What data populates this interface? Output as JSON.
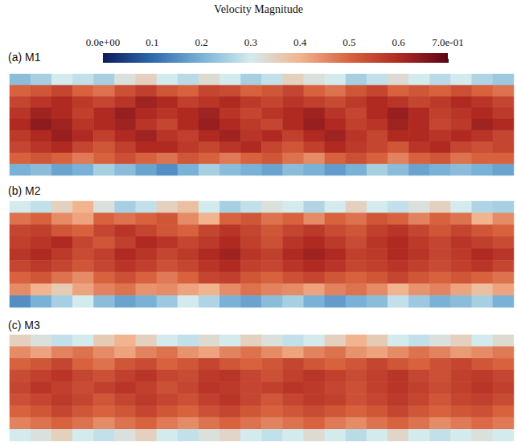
{
  "chart_data": {
    "type": "heatmap",
    "title": "Velocity Magnitude",
    "tick_labels": false,
    "colorbar": {
      "range": [
        0,
        0.7
      ],
      "ticks": [
        {
          "value": 0,
          "label": "0.0e+00"
        },
        0.1,
        0.2,
        0.3,
        0.4,
        0.5,
        0.6,
        {
          "value": 0.7,
          "label": "7.0e-01"
        }
      ]
    },
    "panels": [
      {
        "label": "(a) M1",
        "cells": [
          [
            0.22,
            0.25,
            0.3,
            0.28,
            0.25,
            0.32,
            0.35,
            0.3,
            0.27,
            0.33,
            0.3,
            0.25,
            0.28,
            0.35,
            0.32,
            0.3,
            0.25,
            0.28,
            0.33,
            0.3,
            0.27,
            0.3,
            0.26,
            0.24
          ],
          [
            0.5,
            0.52,
            0.55,
            0.5,
            0.48,
            0.53,
            0.56,
            0.52,
            0.5,
            0.55,
            0.54,
            0.5,
            0.52,
            0.55,
            0.5,
            0.48,
            0.52,
            0.55,
            0.5,
            0.52,
            0.5,
            0.53,
            0.5,
            0.48
          ],
          [
            0.55,
            0.58,
            0.6,
            0.57,
            0.55,
            0.58,
            0.62,
            0.6,
            0.56,
            0.58,
            0.6,
            0.57,
            0.55,
            0.58,
            0.56,
            0.54,
            0.57,
            0.6,
            0.58,
            0.55,
            0.57,
            0.6,
            0.58,
            0.55
          ],
          [
            0.58,
            0.62,
            0.6,
            0.56,
            0.6,
            0.63,
            0.6,
            0.58,
            0.6,
            0.62,
            0.58,
            0.55,
            0.58,
            0.6,
            0.62,
            0.58,
            0.55,
            0.6,
            0.63,
            0.6,
            0.56,
            0.58,
            0.6,
            0.57
          ],
          [
            0.6,
            0.64,
            0.62,
            0.58,
            0.6,
            0.62,
            0.58,
            0.55,
            0.6,
            0.63,
            0.6,
            0.57,
            0.55,
            0.6,
            0.63,
            0.6,
            0.56,
            0.58,
            0.62,
            0.6,
            0.55,
            0.57,
            0.62,
            0.6
          ],
          [
            0.57,
            0.6,
            0.63,
            0.6,
            0.56,
            0.6,
            0.62,
            0.58,
            0.56,
            0.6,
            0.62,
            0.58,
            0.6,
            0.56,
            0.6,
            0.62,
            0.58,
            0.55,
            0.6,
            0.6,
            0.58,
            0.6,
            0.58,
            0.55
          ],
          [
            0.55,
            0.58,
            0.6,
            0.55,
            0.52,
            0.56,
            0.6,
            0.6,
            0.57,
            0.55,
            0.58,
            0.6,
            0.55,
            0.52,
            0.56,
            0.6,
            0.57,
            0.55,
            0.52,
            0.58,
            0.6,
            0.55,
            0.53,
            0.55
          ],
          [
            0.5,
            0.52,
            0.5,
            0.47,
            0.5,
            0.53,
            0.5,
            0.48,
            0.52,
            0.5,
            0.47,
            0.5,
            0.52,
            0.48,
            0.45,
            0.5,
            0.53,
            0.5,
            0.46,
            0.5,
            0.52,
            0.48,
            0.5,
            0.5
          ],
          [
            0.2,
            0.22,
            0.18,
            0.2,
            0.25,
            0.22,
            0.18,
            0.15,
            0.2,
            0.25,
            0.22,
            0.2,
            0.18,
            0.22,
            0.2,
            0.17,
            0.2,
            0.25,
            0.22,
            0.18,
            0.2,
            0.22,
            0.2,
            0.18
          ]
        ]
      },
      {
        "label": "(b) M2",
        "cells": [
          [
            0.3,
            0.28,
            0.35,
            0.4,
            0.32,
            0.25,
            0.28,
            0.35,
            0.38,
            0.3,
            0.25,
            0.28,
            0.32,
            0.3,
            0.26,
            0.3,
            0.35,
            0.3,
            0.28,
            0.32,
            0.35,
            0.3,
            0.26,
            0.25
          ],
          [
            0.48,
            0.5,
            0.45,
            0.42,
            0.5,
            0.48,
            0.5,
            0.52,
            0.45,
            0.4,
            0.5,
            0.52,
            0.48,
            0.5,
            0.45,
            0.5,
            0.48,
            0.52,
            0.5,
            0.46,
            0.5,
            0.48,
            0.4,
            0.45
          ],
          [
            0.55,
            0.56,
            0.52,
            0.5,
            0.55,
            0.58,
            0.55,
            0.52,
            0.5,
            0.55,
            0.58,
            0.55,
            0.52,
            0.55,
            0.57,
            0.54,
            0.52,
            0.56,
            0.58,
            0.55,
            0.52,
            0.55,
            0.52,
            0.5
          ],
          [
            0.56,
            0.58,
            0.6,
            0.55,
            0.52,
            0.56,
            0.6,
            0.58,
            0.55,
            0.57,
            0.6,
            0.56,
            0.53,
            0.58,
            0.6,
            0.57,
            0.54,
            0.58,
            0.6,
            0.57,
            0.55,
            0.58,
            0.56,
            0.54
          ],
          [
            0.58,
            0.6,
            0.57,
            0.54,
            0.56,
            0.6,
            0.58,
            0.55,
            0.57,
            0.6,
            0.62,
            0.58,
            0.56,
            0.6,
            0.62,
            0.6,
            0.56,
            0.57,
            0.6,
            0.58,
            0.55,
            0.57,
            0.6,
            0.58
          ],
          [
            0.55,
            0.57,
            0.55,
            0.52,
            0.55,
            0.58,
            0.56,
            0.53,
            0.55,
            0.58,
            0.6,
            0.56,
            0.55,
            0.58,
            0.6,
            0.58,
            0.55,
            0.56,
            0.58,
            0.56,
            0.54,
            0.56,
            0.58,
            0.55
          ],
          [
            0.5,
            0.52,
            0.48,
            0.45,
            0.5,
            0.53,
            0.5,
            0.47,
            0.5,
            0.55,
            0.56,
            0.52,
            0.5,
            0.53,
            0.55,
            0.52,
            0.5,
            0.52,
            0.55,
            0.52,
            0.5,
            0.52,
            0.5,
            0.48
          ],
          [
            0.45,
            0.4,
            0.36,
            0.42,
            0.46,
            0.48,
            0.44,
            0.45,
            0.42,
            0.4,
            0.45,
            0.48,
            0.46,
            0.45,
            0.42,
            0.46,
            0.48,
            0.45,
            0.4,
            0.44,
            0.46,
            0.42,
            0.38,
            0.42
          ],
          [
            0.15,
            0.2,
            0.25,
            0.3,
            0.22,
            0.18,
            0.2,
            0.24,
            0.3,
            0.26,
            0.2,
            0.18,
            0.22,
            0.25,
            0.2,
            0.17,
            0.2,
            0.22,
            0.28,
            0.24,
            0.2,
            0.22,
            0.25,
            0.2
          ]
        ]
      },
      {
        "label": "(c) M3",
        "cells": [
          [
            0.35,
            0.32,
            0.28,
            0.3,
            0.36,
            0.4,
            0.35,
            0.3,
            0.28,
            0.33,
            0.3,
            0.35,
            0.32,
            0.28,
            0.3,
            0.35,
            0.4,
            0.36,
            0.3,
            0.28,
            0.32,
            0.35,
            0.3,
            0.33
          ],
          [
            0.45,
            0.42,
            0.46,
            0.48,
            0.45,
            0.42,
            0.46,
            0.48,
            0.44,
            0.42,
            0.46,
            0.48,
            0.45,
            0.42,
            0.46,
            0.48,
            0.44,
            0.42,
            0.45,
            0.48,
            0.46,
            0.43,
            0.45,
            0.47
          ],
          [
            0.5,
            0.52,
            0.55,
            0.5,
            0.48,
            0.52,
            0.54,
            0.5,
            0.52,
            0.55,
            0.52,
            0.5,
            0.52,
            0.55,
            0.52,
            0.5,
            0.52,
            0.55,
            0.52,
            0.5,
            0.53,
            0.55,
            0.52,
            0.5
          ],
          [
            0.54,
            0.56,
            0.58,
            0.55,
            0.53,
            0.56,
            0.58,
            0.55,
            0.54,
            0.57,
            0.58,
            0.55,
            0.53,
            0.56,
            0.58,
            0.56,
            0.54,
            0.56,
            0.58,
            0.55,
            0.53,
            0.56,
            0.57,
            0.55
          ],
          [
            0.55,
            0.58,
            0.56,
            0.54,
            0.56,
            0.58,
            0.56,
            0.53,
            0.55,
            0.58,
            0.57,
            0.55,
            0.56,
            0.58,
            0.57,
            0.55,
            0.53,
            0.56,
            0.58,
            0.56,
            0.54,
            0.56,
            0.58,
            0.56
          ],
          [
            0.53,
            0.55,
            0.57,
            0.55,
            0.52,
            0.55,
            0.57,
            0.55,
            0.53,
            0.56,
            0.58,
            0.55,
            0.52,
            0.55,
            0.57,
            0.56,
            0.53,
            0.55,
            0.57,
            0.55,
            0.52,
            0.55,
            0.56,
            0.54
          ],
          [
            0.5,
            0.52,
            0.55,
            0.52,
            0.5,
            0.52,
            0.55,
            0.52,
            0.5,
            0.53,
            0.55,
            0.52,
            0.5,
            0.52,
            0.54,
            0.52,
            0.5,
            0.52,
            0.55,
            0.52,
            0.5,
            0.52,
            0.53,
            0.5
          ],
          [
            0.46,
            0.48,
            0.5,
            0.48,
            0.45,
            0.48,
            0.5,
            0.47,
            0.45,
            0.48,
            0.5,
            0.48,
            0.46,
            0.48,
            0.5,
            0.47,
            0.45,
            0.48,
            0.5,
            0.48,
            0.45,
            0.47,
            0.49,
            0.47
          ],
          [
            0.3,
            0.32,
            0.35,
            0.3,
            0.28,
            0.32,
            0.35,
            0.3,
            0.28,
            0.32,
            0.34,
            0.3,
            0.28,
            0.3,
            0.33,
            0.3,
            0.27,
            0.3,
            0.34,
            0.3,
            0.28,
            0.3,
            0.32,
            0.3
          ]
        ]
      }
    ]
  }
}
